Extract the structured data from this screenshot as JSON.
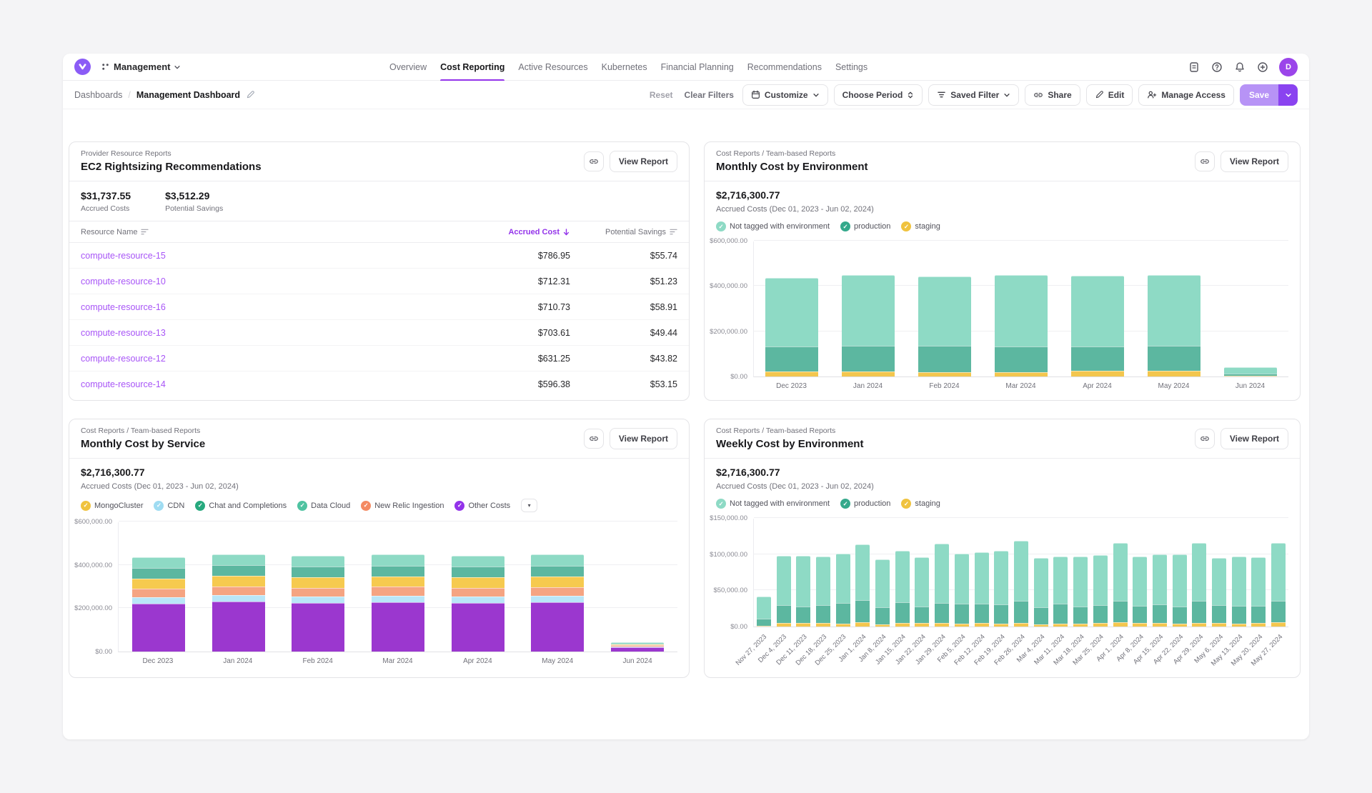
{
  "header": {
    "workspace_label": "Management",
    "tabs": [
      {
        "label": "Overview",
        "active": false
      },
      {
        "label": "Cost Reporting",
        "active": true
      },
      {
        "label": "Active Resources",
        "active": false
      },
      {
        "label": "Kubernetes",
        "active": false
      },
      {
        "label": "Financial Planning",
        "active": false
      },
      {
        "label": "Recommendations",
        "active": false
      },
      {
        "label": "Settings",
        "active": false
      }
    ],
    "avatar_initial": "D"
  },
  "toolbar": {
    "breadcrumb": {
      "root": "Dashboards",
      "current": "Management Dashboard"
    },
    "reset_label": "Reset",
    "clear_filters_label": "Clear Filters",
    "customize_label": "Customize",
    "choose_period_label": "Choose Period",
    "saved_filter_label": "Saved Filter",
    "share_label": "Share",
    "edit_label": "Edit",
    "manage_access_label": "Manage Access",
    "save_label": "Save"
  },
  "colors": {
    "accent_purple": "#9333ea",
    "save_light": "#b793f6",
    "save_dark": "#8a43f0",
    "link_purple": "#a855f7"
  },
  "panels": {
    "ec2": {
      "eyebrow": "Provider Resource Reports",
      "title": "EC2 Rightsizing Recommendations",
      "view_report_label": "View Report",
      "stats": [
        {
          "value": "$31,737.55",
          "label": "Accrued Costs"
        },
        {
          "value": "$3,512.29",
          "label": "Potential Savings"
        }
      ],
      "table": {
        "columns": [
          "Resource Name",
          "Accrued Cost",
          "Potential Savings"
        ],
        "sorted_by": "Accrued Cost",
        "sort_direction": "desc",
        "rows": [
          {
            "name": "compute-resource-15",
            "accrued_cost": "$786.95",
            "potential_savings": "$55.74"
          },
          {
            "name": "compute-resource-10",
            "accrued_cost": "$712.31",
            "potential_savings": "$51.23"
          },
          {
            "name": "compute-resource-16",
            "accrued_cost": "$710.73",
            "potential_savings": "$58.91"
          },
          {
            "name": "compute-resource-13",
            "accrued_cost": "$703.61",
            "potential_savings": "$49.44"
          },
          {
            "name": "compute-resource-12",
            "accrued_cost": "$631.25",
            "potential_savings": "$43.82"
          },
          {
            "name": "compute-resource-14",
            "accrued_cost": "$596.38",
            "potential_savings": "$53.15"
          }
        ]
      }
    },
    "monthly_env": {
      "eyebrow": "Cost Reports / Team-based Reports",
      "title": "Monthly Cost by Environment",
      "view_report_label": "View Report",
      "total": "$2,716,300.77",
      "subtitle": "Accrued Costs (Dec 01, 2023 - Jun 02, 2024)",
      "legend": [
        {
          "label": "Not tagged with environment",
          "color": "#8edac5"
        },
        {
          "label": "production",
          "color": "#35a98c"
        },
        {
          "label": "staging",
          "color": "#f0c33f"
        }
      ],
      "legend_more": false
    },
    "monthly_service": {
      "eyebrow": "Cost Reports / Team-based Reports",
      "title": "Monthly Cost by Service",
      "view_report_label": "View Report",
      "total": "$2,716,300.77",
      "subtitle": "Accrued Costs (Dec 01, 2023 - Jun 02, 2024)",
      "legend": [
        {
          "label": "MongoCluster",
          "color": "#f0c33f"
        },
        {
          "label": "CDN",
          "color": "#9fdcf2"
        },
        {
          "label": "Chat and Completions",
          "color": "#27a97e"
        },
        {
          "label": "Data Cloud",
          "color": "#4fc3a1"
        },
        {
          "label": "New Relic Ingestion",
          "color": "#f48a62"
        },
        {
          "label": "Other Costs",
          "color": "#9333ea"
        }
      ],
      "legend_more": true
    },
    "weekly_env": {
      "eyebrow": "Cost Reports / Team-based Reports",
      "title": "Weekly Cost by Environment",
      "view_report_label": "View Report",
      "total": "$2,716,300.77",
      "subtitle": "Accrued Costs (Dec 01, 2023 - Jun 02, 2024)",
      "legend": [
        {
          "label": "Not tagged with environment",
          "color": "#8edac5"
        },
        {
          "label": "production",
          "color": "#35a98c"
        },
        {
          "label": "staging",
          "color": "#f0c33f"
        }
      ],
      "legend_more": false
    }
  },
  "chart_data": [
    {
      "id": "monthly-cost-by-environment",
      "type": "stacked_bar",
      "title": "Monthly Cost by Environment",
      "ylim": [
        0,
        600000
      ],
      "yticks": [
        {
          "value": 600000,
          "label": "$600,000.00"
        },
        {
          "value": 400000,
          "label": "$400,000.00"
        },
        {
          "value": 200000,
          "label": "$200,000.00"
        },
        {
          "value": 0,
          "label": "$0.00"
        }
      ],
      "categories": [
        "Dec 2023",
        "Jan 2024",
        "Feb 2024",
        "Mar 2024",
        "Apr 2024",
        "May 2024",
        "Jun 2024"
      ],
      "stack_order": "bottom_to_top",
      "series": [
        {
          "name": "staging",
          "color": "#f3c64e",
          "values": [
            21000,
            21500,
            19000,
            20500,
            24000,
            24500,
            1500
          ]
        },
        {
          "name": "production",
          "color": "#5cb7a0",
          "values": [
            113000,
            115000,
            116000,
            113000,
            109000,
            111000,
            9000
          ]
        },
        {
          "name": "Not tagged with environment",
          "color": "#8edac5",
          "values": [
            301000,
            313000,
            307000,
            314000,
            311000,
            312000,
            30000
          ]
        }
      ]
    },
    {
      "id": "monthly-cost-by-service",
      "type": "stacked_bar",
      "title": "Monthly Cost by Service",
      "ylim": [
        0,
        600000
      ],
      "yticks": [
        {
          "value": 600000,
          "label": "$600,000.00"
        },
        {
          "value": 400000,
          "label": "$400,000.00"
        },
        {
          "value": 200000,
          "label": "$200,000.00"
        },
        {
          "value": 0,
          "label": "$0.00"
        }
      ],
      "categories": [
        "Dec 2023",
        "Jan 2024",
        "Feb 2024",
        "Mar 2024",
        "Apr 2024",
        "May 2024",
        "Jun 2024"
      ],
      "stack_order": "bottom_to_top",
      "series": [
        {
          "name": "Other Costs",
          "color": "#9b37cf",
          "values": [
            222000,
            230000,
            223000,
            226000,
            223000,
            227000,
            20000
          ]
        },
        {
          "name": "CDN",
          "color": "#b9e6f8",
          "values": [
            30000,
            30000,
            31000,
            30000,
            31000,
            30000,
            4000
          ]
        },
        {
          "name": "New Relic Ingestion",
          "color": "#f5a482",
          "values": [
            38000,
            41000,
            40000,
            43000,
            39000,
            40000,
            4500
          ]
        },
        {
          "name": "MongoCluster",
          "color": "#f6ca4f",
          "values": [
            47000,
            48000,
            49000,
            47000,
            49000,
            48000,
            5000
          ]
        },
        {
          "name": "Chat and Completions",
          "color": "#5cb7a0",
          "values": [
            49000,
            50000,
            49000,
            51000,
            50000,
            51000,
            4000
          ]
        },
        {
          "name": "Data Cloud",
          "color": "#8edac5",
          "values": [
            49000,
            50000,
            50000,
            51000,
            51000,
            51000,
            4000
          ]
        }
      ]
    },
    {
      "id": "weekly-cost-by-environment",
      "type": "stacked_bar",
      "title": "Weekly Cost by Environment",
      "ylim": [
        0,
        150000
      ],
      "yticks": [
        {
          "value": 150000,
          "label": "$150,000.00"
        },
        {
          "value": 100000,
          "label": "$100,000.00"
        },
        {
          "value": 50000,
          "label": "$50,000.00"
        },
        {
          "value": 0,
          "label": "$0.00"
        }
      ],
      "categories": [
        "Nov 27, 2023",
        "Dec 4, 2023",
        "Dec 11, 2023",
        "Dec 18, 2023",
        "Dec 25, 2023",
        "Jan 1, 2024",
        "Jan 8, 2024",
        "Jan 15, 2024",
        "Jan 22, 2024",
        "Jan 29, 2024",
        "Feb 5, 2024",
        "Feb 12, 2024",
        "Feb 19, 2024",
        "Feb 26, 2024",
        "Mar 4, 2024",
        "Mar 11, 2024",
        "Mar 18, 2024",
        "Mar 25, 2024",
        "Apr 1, 2024",
        "Apr 8, 2024",
        "Apr 15, 2024",
        "Apr 22, 2024",
        "Apr 29, 2024",
        "May 6, 2024",
        "May 13, 2024",
        "May 20, 2024",
        "May 27, 2024"
      ],
      "stack_order": "bottom_to_top",
      "series": [
        {
          "name": "staging",
          "color": "#f3c64e",
          "values": [
            1000,
            5000,
            5000,
            5000,
            4000,
            6000,
            3000,
            5000,
            5000,
            5000,
            4000,
            5000,
            4000,
            5000,
            3000,
            4000,
            4000,
            5000,
            6000,
            5000,
            5000,
            4000,
            5000,
            5000,
            4000,
            5000,
            6000
          ]
        },
        {
          "name": "production",
          "color": "#5cb7a0",
          "values": [
            10000,
            25000,
            23000,
            25000,
            29000,
            31000,
            24000,
            29000,
            23000,
            28000,
            28000,
            27000,
            27000,
            31000,
            24000,
            28000,
            24000,
            25000,
            30000,
            24000,
            26000,
            24000,
            31000,
            25000,
            25000,
            24000,
            30000
          ]
        },
        {
          "name": "Not tagged with environment",
          "color": "#8edac5",
          "values": [
            30000,
            68000,
            70000,
            67000,
            68000,
            77000,
            66000,
            71000,
            68000,
            82000,
            69000,
            71000,
            74000,
            82000,
            68000,
            65000,
            69000,
            69000,
            79000,
            68000,
            69000,
            72000,
            79000,
            65000,
            68000,
            67000,
            79000
          ]
        }
      ]
    }
  ]
}
